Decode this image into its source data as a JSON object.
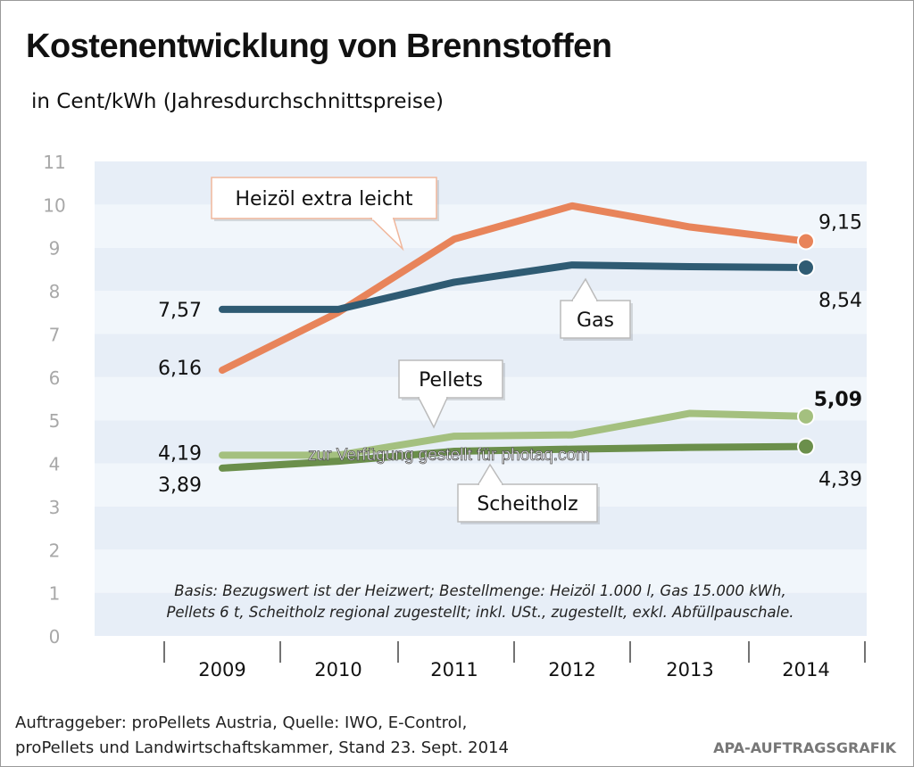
{
  "chart_data": {
    "type": "line",
    "title": "Kostenentwicklung von Brennstoffen",
    "subtitle": "in Cent/kWh (Jahresdurchschnittspreise)",
    "categories": [
      "2009",
      "2010",
      "2011",
      "2012",
      "2013",
      "2014"
    ],
    "ylim": [
      0,
      11
    ],
    "yticks": [
      "0",
      "1",
      "2",
      "3",
      "4",
      "5",
      "6",
      "7",
      "8",
      "9",
      "10",
      "11"
    ],
    "grid": "alternating horizontal bands",
    "series": [
      {
        "name": "Heizöl extra leicht",
        "color": "#e8845a",
        "values": [
          6.16,
          7.5,
          9.2,
          9.97,
          9.48,
          9.15
        ],
        "start_label": "6,16",
        "end_label": "9,15"
      },
      {
        "name": "Gas",
        "color": "#2f5b73",
        "values": [
          7.57,
          7.57,
          8.2,
          8.6,
          8.56,
          8.54
        ],
        "start_label": "7,57",
        "end_label": "8,54"
      },
      {
        "name": "Pellets",
        "color": "#a4c07f",
        "values": [
          4.19,
          4.19,
          4.63,
          4.66,
          5.16,
          5.09
        ],
        "start_label": "4,19",
        "end_label": "5,09"
      },
      {
        "name": "Scheitholz",
        "color": "#6b8f4b",
        "values": [
          3.89,
          4.05,
          4.28,
          4.33,
          4.37,
          4.39
        ],
        "start_label": "3,89",
        "end_label": "4,39"
      }
    ],
    "note": [
      "Basis: Bezugswert ist der Heizwert; Bestellmenge: Heizöl 1.000 l, Gas 15.000 kWh,",
      "Pellets 6 t, Scheitholz regional zugestellt; inkl. USt., zugestellt, exkl. Abfüllpauschale."
    ]
  },
  "footer": {
    "source_line1": "Auftraggeber: proPellets Austria, Quelle: IWO, E-Control,",
    "source_line2": "proPellets und Landwirtschaftskammer, Stand 23. Sept. 2014",
    "credit": "APA-AUFTRAGSGRAFIK"
  },
  "watermark": "zur Verfügung gestellt für photaq.com"
}
